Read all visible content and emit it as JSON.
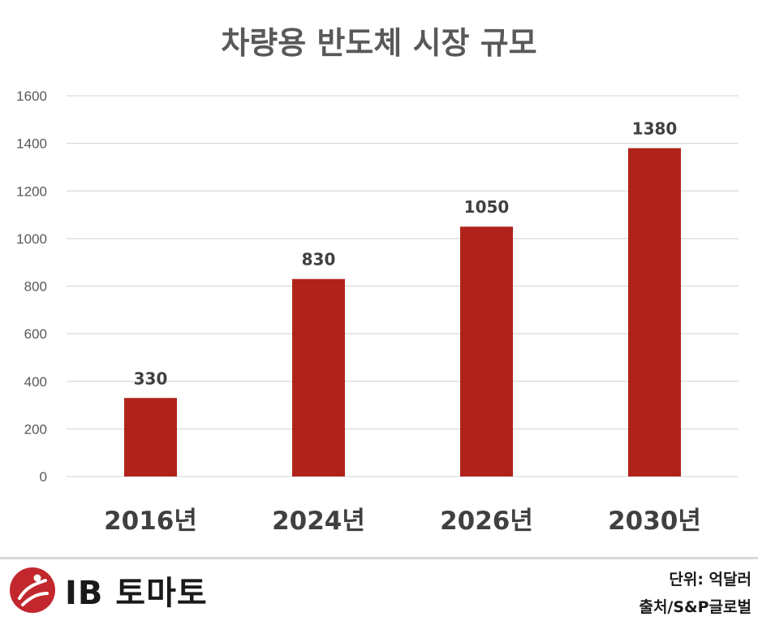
{
  "chart_data": {
    "type": "bar",
    "title": "차량용 반도체 시장 규모",
    "categories": [
      "2016년",
      "2024년",
      "2026년",
      "2030년"
    ],
    "values": [
      330,
      830,
      1050,
      1380
    ],
    "ylim": [
      0,
      1600
    ],
    "yticks": [
      0,
      200,
      400,
      600,
      800,
      1000,
      1200,
      1400,
      1600
    ],
    "grid": true,
    "bar_color": "#b0231b",
    "show_data_labels": true
  },
  "footer": {
    "logo_text": "IB 토마토",
    "unit": "단위: 억달러",
    "source": "출처/S&P글로벌"
  },
  "colors": {
    "bar": "#b0231b",
    "grid": "#d9d9d9",
    "logo_mark": "#c2272d"
  }
}
